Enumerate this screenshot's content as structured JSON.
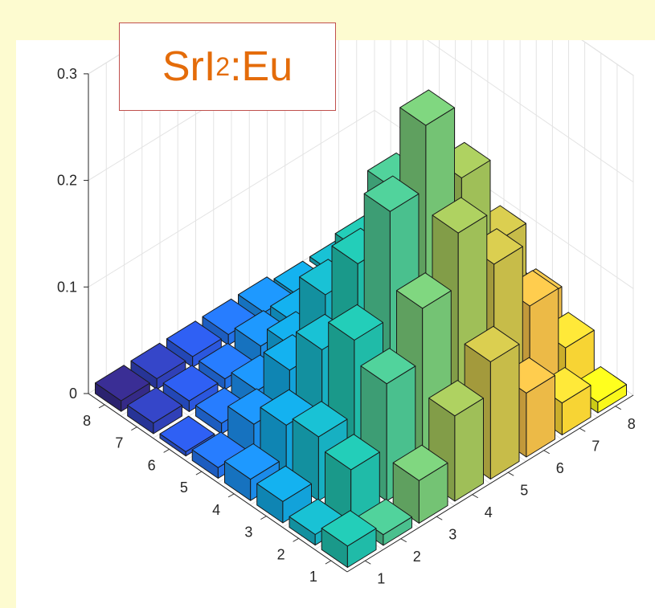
{
  "title": {
    "main": "SrI",
    "subscript": "2",
    "suffix": ":Eu"
  },
  "chart_data": {
    "type": "bar3d",
    "title": "SrI2:Eu",
    "x_ticks": [
      "1",
      "2",
      "3",
      "4",
      "5",
      "6",
      "7",
      "8"
    ],
    "y_ticks": [
      "1",
      "2",
      "3",
      "4",
      "5",
      "6",
      "7",
      "8"
    ],
    "z_ticks": [
      "0",
      "0.1",
      "0.2",
      "0.3"
    ],
    "zlim": [
      0,
      0.3
    ],
    "grid": true,
    "colormap": "parula",
    "rows": [
      [
        0.02,
        0.01,
        0.04,
        0.08,
        0.11,
        0.06,
        0.03,
        0.01
      ],
      [
        0.01,
        0.05,
        0.11,
        0.16,
        0.21,
        0.16,
        0.1,
        0.04
      ],
      [
        0.02,
        0.06,
        0.13,
        0.23,
        0.29,
        0.22,
        0.14,
        0.06
      ],
      [
        0.02,
        0.05,
        0.1,
        0.16,
        0.21,
        0.18,
        0.12,
        0.05
      ],
      [
        0.01,
        0.03,
        0.06,
        0.11,
        0.13,
        0.11,
        0.06,
        0.02
      ],
      [
        0.0,
        0.01,
        0.02,
        0.04,
        0.04,
        0.03,
        0.02,
        0.01
      ],
      [
        0.01,
        0.01,
        0.01,
        0.02,
        0.02,
        0.01,
        0.0,
        0.0
      ],
      [
        0.01,
        0.01,
        0.01,
        0.01,
        0.01,
        0.0,
        0.0,
        0.0
      ]
    ],
    "bar_colors": [
      "#352a87",
      "#2d50db",
      "#1f7ff0",
      "#10a8d6",
      "#20bba8",
      "#69c47b",
      "#b4bd4a",
      "#f5b946",
      "#f9f81b"
    ]
  }
}
